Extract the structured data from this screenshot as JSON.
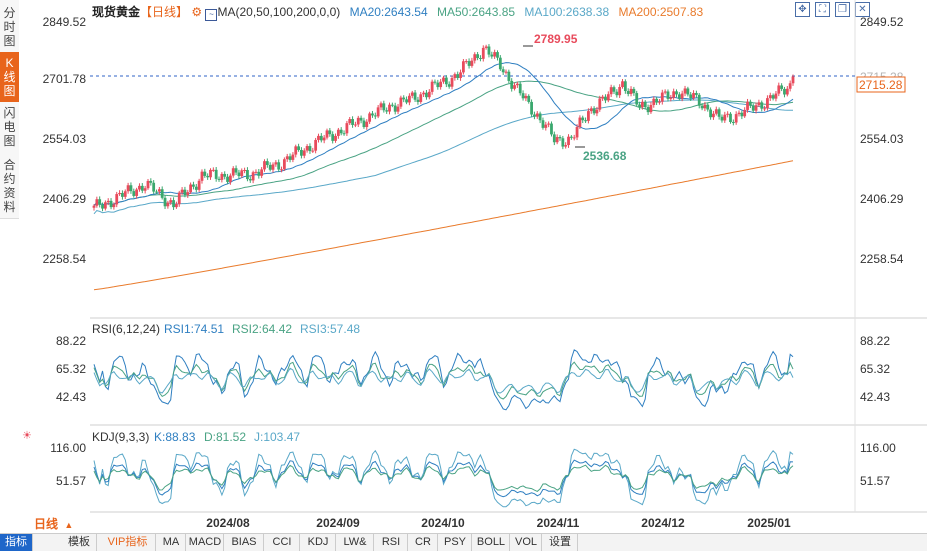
{
  "sidebar": {
    "tabs": [
      {
        "label": "分时图"
      },
      {
        "label": "K线图"
      },
      {
        "label": "闪电图"
      },
      {
        "label": "合约资料"
      }
    ]
  },
  "header": {
    "symbol": "现货黄金",
    "period": "【日线】",
    "settings_icon": "gear-icon",
    "ma_label": "MA(20,50,100,200,0,0)",
    "ma_values": [
      "MA20:2643.54",
      "MA50:2643.85",
      "MA100:2638.38",
      "MA200:2507.83"
    ],
    "toolbar_icons": [
      "move-icon",
      "fullscreen-icon",
      "restore-icon",
      "close-icon"
    ]
  },
  "price_panel": {
    "y_ticks": [
      "2849.52",
      "2701.78",
      "2554.03",
      "2406.29",
      "2258.54"
    ],
    "high_label": "2789.95",
    "low_label": "2536.68",
    "current_price": "2715.28",
    "right_partial_label": "2715.28"
  },
  "rsi_panel": {
    "label": "RSI(6,12,24)",
    "values": [
      "RSI1:74.51",
      "RSI2:64.42",
      "RSI3:57.48"
    ],
    "y_ticks": [
      "88.22",
      "65.32",
      "42.43"
    ]
  },
  "kdj_panel": {
    "label": "KDJ(9,3,3)",
    "values": [
      "K:88.83",
      "D:81.52",
      "J:103.47"
    ],
    "y_ticks": [
      "116.00",
      "51.57"
    ],
    "sun_icon": "sun-icon"
  },
  "x_axis": {
    "labels": [
      "2024/08",
      "2024/09",
      "2024/10",
      "2024/11",
      "2024/12",
      "2025/01"
    ]
  },
  "period_selector": {
    "label": "日线",
    "icon": "triangle-up-icon"
  },
  "bottom_tabs": [
    {
      "label": "指标"
    },
    {
      "label": "模板"
    },
    {
      "label": "VIP指标"
    },
    {
      "label": "MA"
    },
    {
      "label": "MACD"
    },
    {
      "label": "BIAS"
    },
    {
      "label": "CCI"
    },
    {
      "label": "KDJ"
    },
    {
      "label": "LW&"
    },
    {
      "label": "RSI"
    },
    {
      "label": "CR"
    },
    {
      "label": "PSY"
    },
    {
      "label": "BOLL"
    },
    {
      "label": "VOL"
    },
    {
      "label": "设置"
    }
  ],
  "colors": {
    "up": "#e84b5c",
    "down": "#3aa86e",
    "ma20": "#2f7fc1",
    "ma50": "#4aa384",
    "ma100": "#5aa8c8",
    "ma200": "#e97b2c",
    "accent": "#e8641b",
    "dashed": "#2f63c7"
  },
  "chart_data": {
    "type": "candlestick",
    "period": "日线",
    "ylim": [
      2200,
      2880
    ],
    "y_ticks": [
      2849.52,
      2701.78,
      2554.03,
      2406.29,
      2258.54
    ],
    "x_labels": [
      "2024/08",
      "2024/09",
      "2024/10",
      "2024/11",
      "2024/12",
      "2025/01"
    ],
    "high": 2789.95,
    "low": 2536.68,
    "last": 2715.28,
    "series": [
      {
        "name": "MA20",
        "last": 2643.54,
        "color": "#2f7fc1"
      },
      {
        "name": "MA50",
        "last": 2643.85,
        "color": "#4aa384"
      },
      {
        "name": "MA100",
        "last": 2638.38,
        "color": "#5aa8c8"
      },
      {
        "name": "MA200",
        "last": 2507.83,
        "color": "#e97b2c"
      }
    ],
    "rsi": {
      "RSI1": 74.51,
      "RSI2": 64.42,
      "RSI3": 57.48,
      "y_ticks": [
        88.22,
        65.32,
        42.43
      ]
    },
    "kdj": {
      "K": 88.83,
      "D": 81.52,
      "J": 103.47,
      "y_ticks": [
        116.0,
        51.57
      ]
    }
  }
}
